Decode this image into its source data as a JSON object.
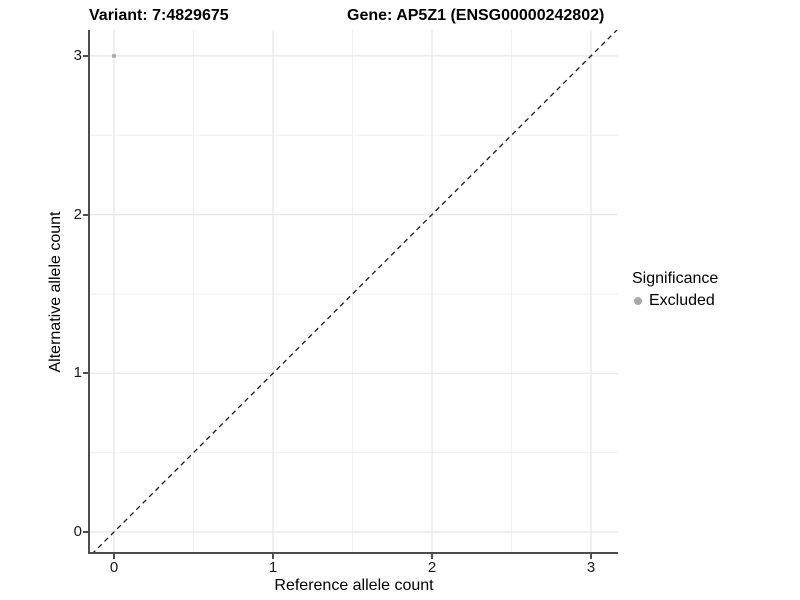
{
  "title": {
    "variant": "Variant: 7:4829675",
    "gene": "Gene: AP5Z1 (ENSG00000242802)"
  },
  "x_axis": {
    "label": "Reference allele count"
  },
  "y_axis": {
    "label": "Alternative allele count"
  },
  "legend": {
    "title": "Significance",
    "items": [
      {
        "label": "Excluded",
        "color": "#A9A9A9"
      }
    ]
  },
  "chart_data": {
    "type": "scatter",
    "title": "Variant: 7:4829675 | Gene: AP5Z1 (ENSG00000242802)",
    "xlabel": "Reference allele count",
    "ylabel": "Alternative allele count",
    "xlim": [
      -0.16,
      3.16
    ],
    "ylim": [
      -0.16,
      3.16
    ],
    "x_ticks": [
      0,
      1,
      2,
      3
    ],
    "y_ticks": [
      0,
      1,
      2,
      3
    ],
    "x_gridlines_minor": [
      0.5,
      1.5,
      2.5
    ],
    "y_gridlines_minor": [
      0.5,
      1.5,
      2.5
    ],
    "grid": "on",
    "legend_position": "right",
    "series": [
      {
        "name": "Excluded",
        "color": "#A9A9A9",
        "points": [
          {
            "x": 0,
            "y": 3
          }
        ]
      }
    ],
    "reference_line": {
      "slope": 1,
      "intercept": 0,
      "style": "dashed",
      "color": "#1A1A1A"
    }
  },
  "colors": {
    "background": "#FFFFFF",
    "grid_major": "#E7E7E7",
    "grid_minor": "#F1F1F1",
    "axis_line": "#4D4D4D",
    "tick": "#4D4D4D",
    "text": "#000000",
    "point": "#A9A9A9"
  }
}
